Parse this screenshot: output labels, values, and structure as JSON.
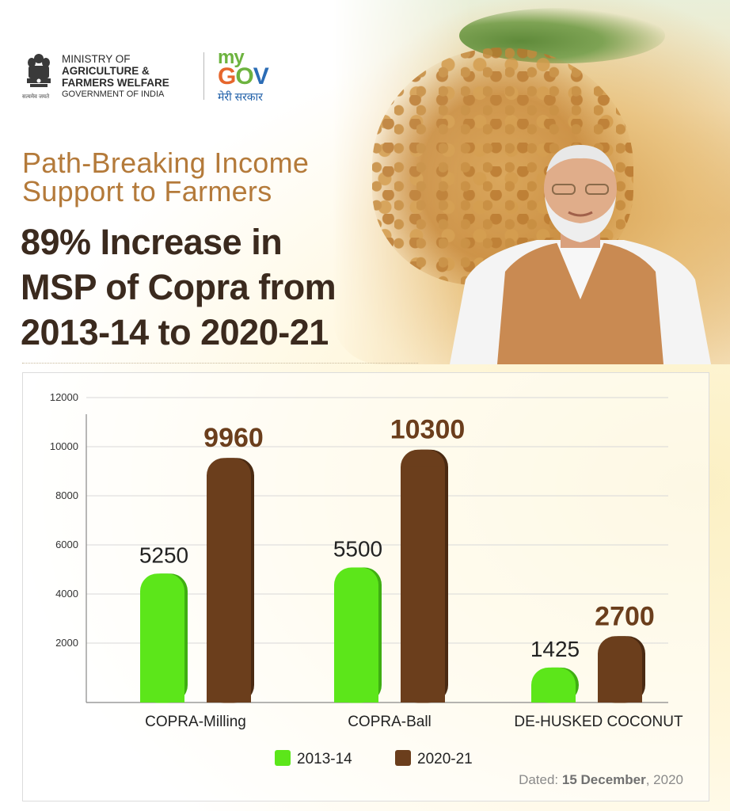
{
  "header": {
    "ministry_line1": "MINISTRY OF",
    "ministry_line2": "AGRICULTURE &",
    "ministry_line3": "FARMERS WELFARE",
    "ministry_line4": "GOVERNMENT OF INDIA",
    "emblem_caption": "सत्यमेव जयते",
    "mygov_my": "my",
    "mygov_g": "G",
    "mygov_o": "O",
    "mygov_v": "V",
    "mygov_tagline": "मेरी सरकार"
  },
  "subtitle_line1": "Path-Breaking Income",
  "subtitle_line2": "Support to Farmers",
  "headline_line1": "89% Increase in",
  "headline_line2": "MSP of Copra from",
  "headline_line3": "2013-14 to 2020-21",
  "footer": {
    "dated_label": "Dated:",
    "dated_date": "15 December",
    "dated_year": ", 2020"
  },
  "colors": {
    "series_2013": "#5ce61a",
    "series_2020": "#6b3e1c",
    "headline": "#3b2a1e",
    "subtitle": "#b47a3a"
  },
  "chart_data": {
    "type": "bar",
    "categories": [
      "COPRA-Milling",
      "COPRA-Ball",
      "DE-HUSKED COCONUT"
    ],
    "series": [
      {
        "name": "2013-14",
        "values": [
          5250,
          5500,
          1425
        ]
      },
      {
        "name": "2020-21",
        "values": [
          9960,
          10300,
          2700
        ]
      }
    ],
    "data_labels": [
      [
        "5250",
        "5500",
        "1425"
      ],
      [
        "9960",
        "10300",
        "2700"
      ]
    ],
    "yticks": [
      2000,
      4000,
      6000,
      8000,
      10000,
      12000
    ],
    "ylim": [
      0,
      12000
    ],
    "grid": true,
    "legend_position": "bottom"
  }
}
